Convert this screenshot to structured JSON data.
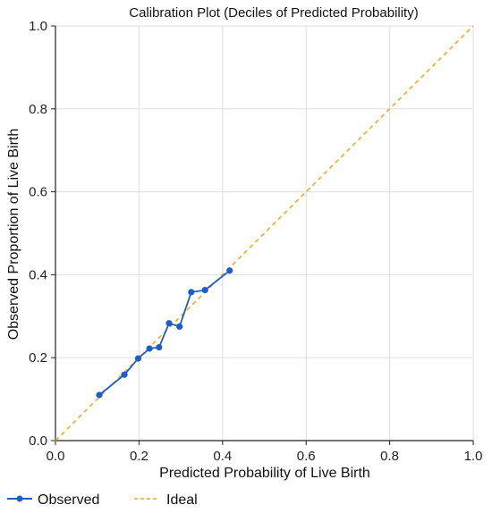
{
  "chart_data": {
    "type": "line",
    "title": "Calibration Plot (Deciles of Predicted Probability)",
    "xlabel": "Predicted Probability of Live Birth",
    "ylabel": "Observed Proportion of Live Birth",
    "xlim": [
      0.0,
      1.0
    ],
    "ylim": [
      0.0,
      1.0
    ],
    "xticks": [
      "0.0",
      "0.2",
      "0.4",
      "0.6",
      "0.8",
      "1.0"
    ],
    "yticks": [
      "0.0",
      "0.2",
      "0.4",
      "0.6",
      "0.8",
      "1.0"
    ],
    "grid": true,
    "legend_position": "bottom-left",
    "series": [
      {
        "name": "Observed",
        "style": "solid-markers",
        "color": "#1f5fbf",
        "x": [
          0.105,
          0.165,
          0.198,
          0.225,
          0.248,
          0.272,
          0.297,
          0.325,
          0.358,
          0.417
        ],
        "y": [
          0.11,
          0.159,
          0.198,
          0.222,
          0.225,
          0.283,
          0.275,
          0.358,
          0.363,
          0.41
        ]
      },
      {
        "name": "Ideal",
        "style": "dashed",
        "color": "#f5a623",
        "x": [
          0.0,
          1.0
        ],
        "y": [
          0.0,
          1.0
        ]
      }
    ]
  }
}
